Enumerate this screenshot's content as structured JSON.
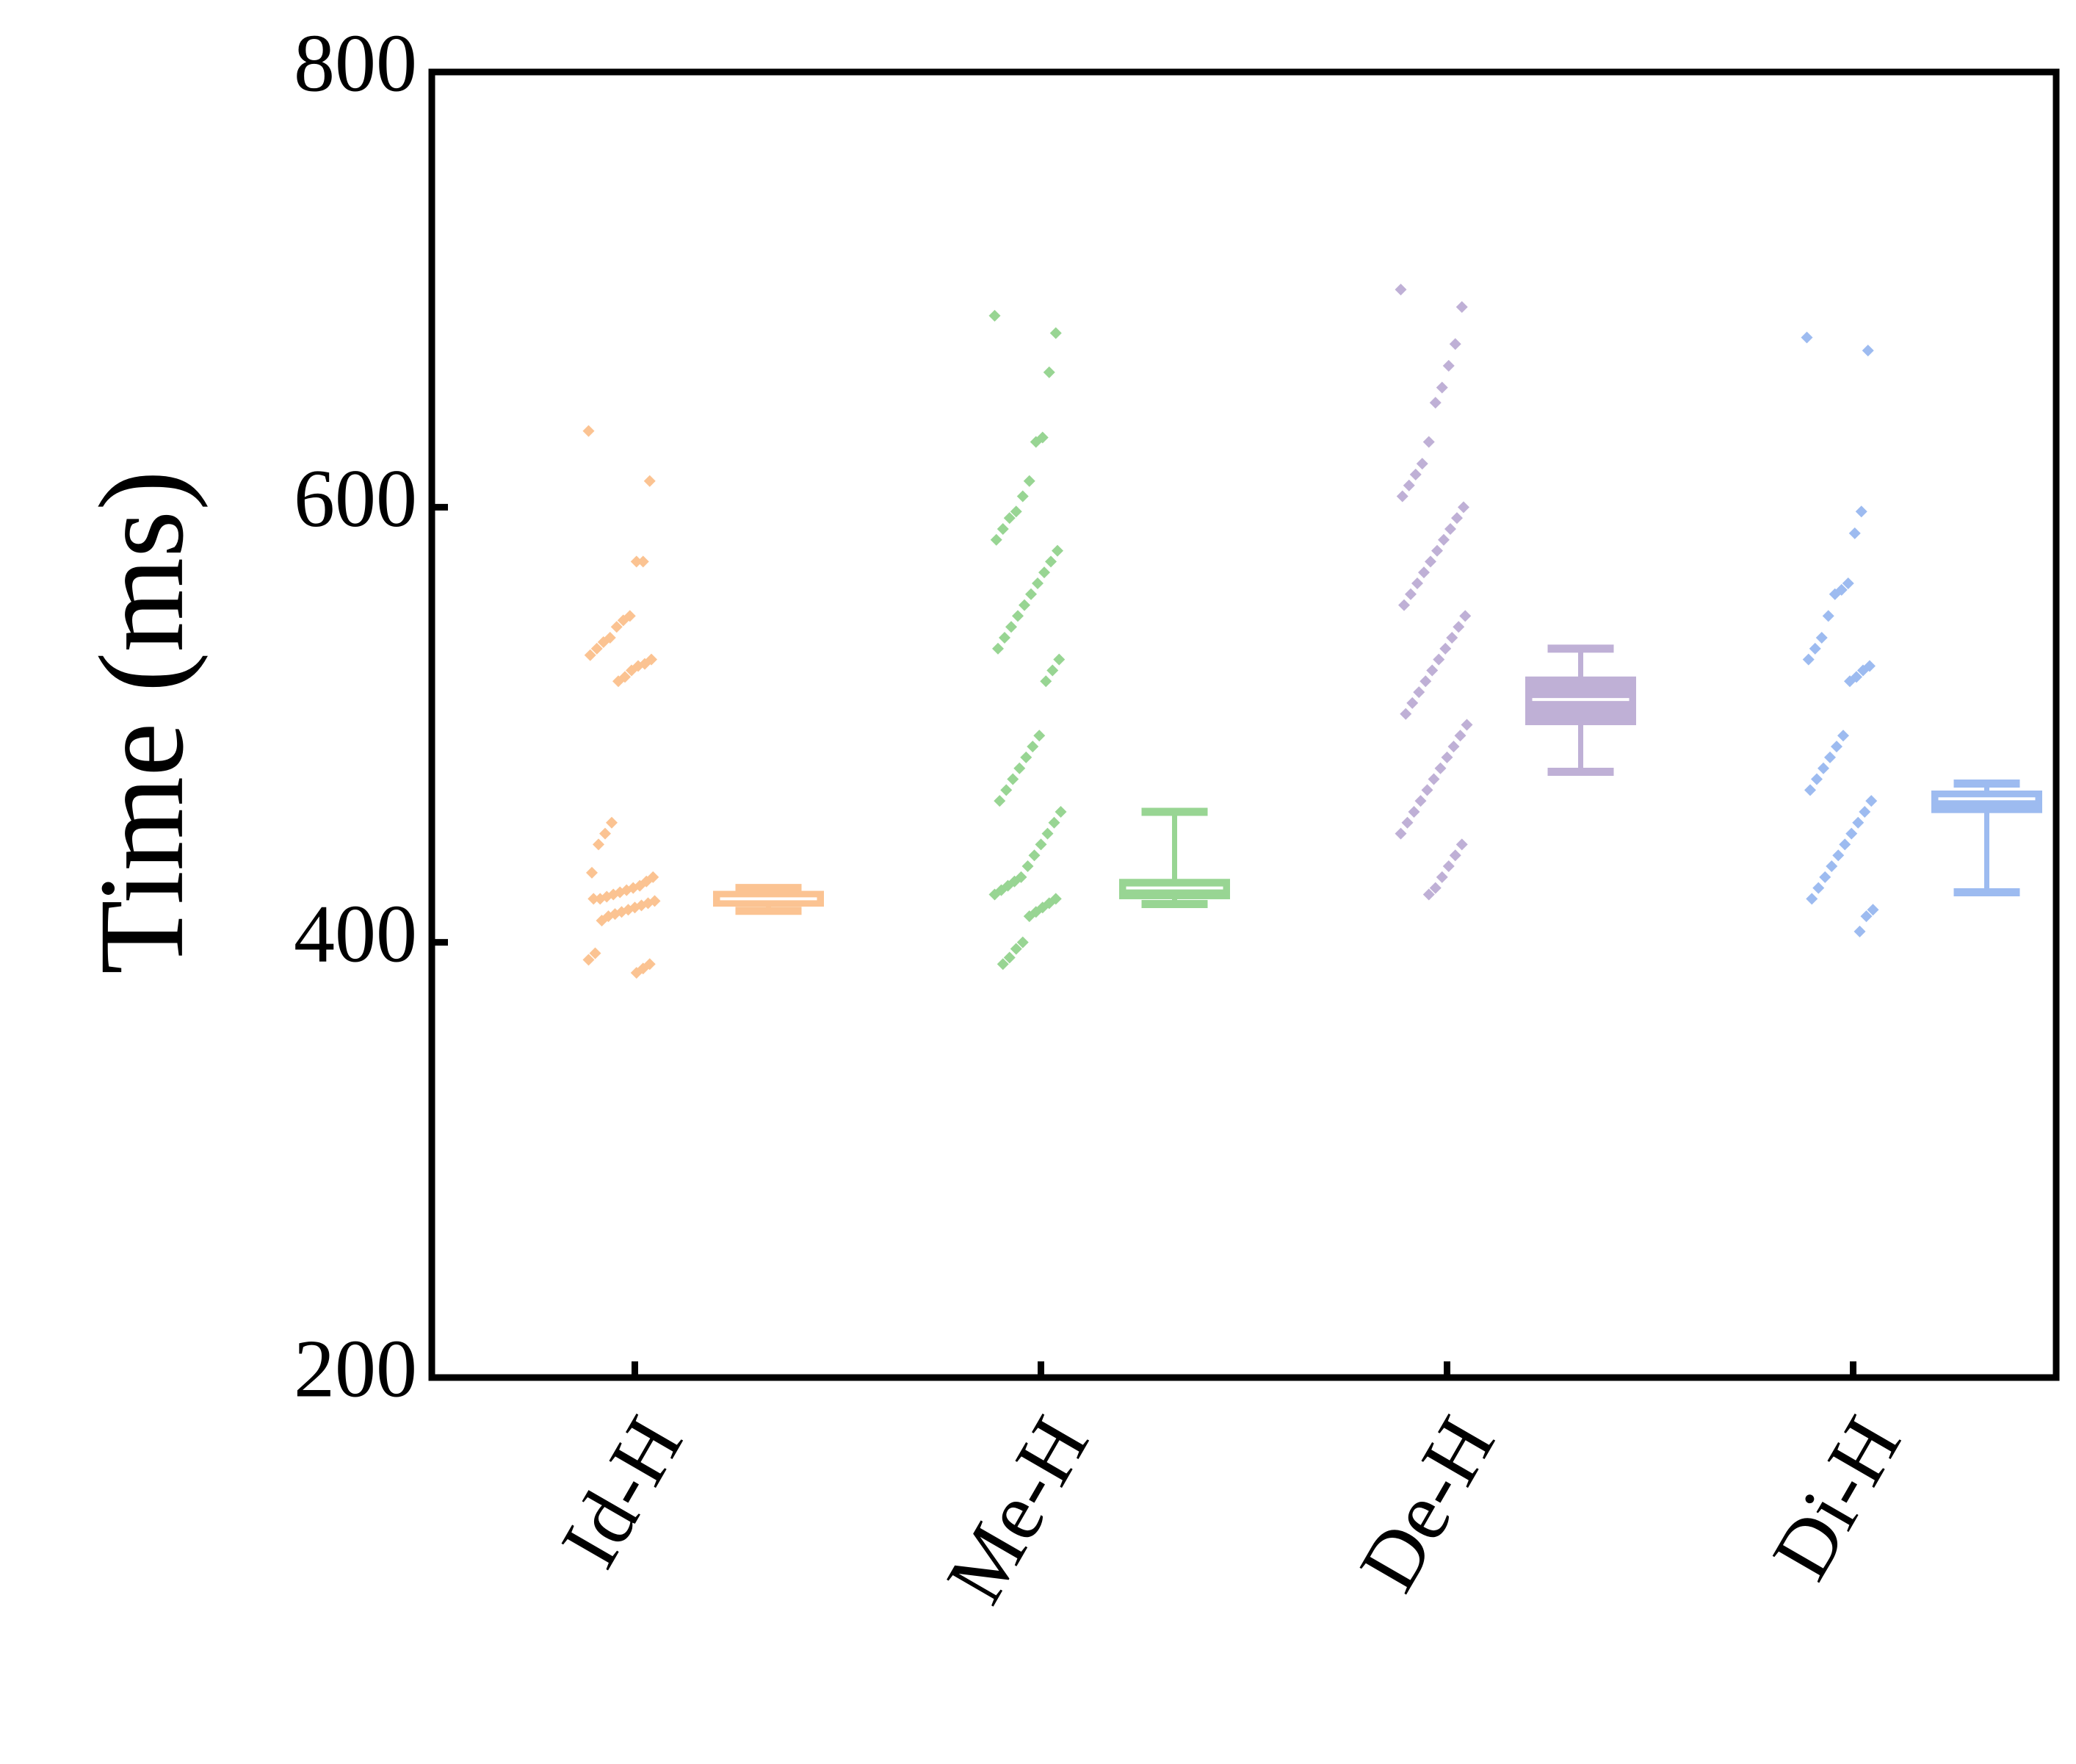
{
  "chart_data": {
    "type": "box",
    "y_label": "Time (ms)",
    "categories": [
      "Id-H",
      "Me-H",
      "De-H",
      "Di-H"
    ],
    "colors": [
      "#fbc392",
      "#98d593",
      "#bfb0d6",
      "#9dbbf0"
    ],
    "ylim": [
      200,
      800
    ],
    "yticks": [
      200,
      400,
      600,
      800
    ],
    "boxes": [
      {
        "whislo": 414.5,
        "q1": 417.6,
        "med": 420,
        "q3": 422.5,
        "whishi": 425
      },
      {
        "whislo": 417.6,
        "q1": 421,
        "med": 425,
        "q3": 428,
        "whishi": 460
      },
      {
        "whislo": 478.4,
        "q1": 501,
        "med": 511.6,
        "q3": 521,
        "whishi": 535
      },
      {
        "whislo": 423,
        "q1": 460.6,
        "med": 466,
        "q3": 468.6,
        "whishi": 473
      }
    ],
    "points": [
      [
        635,
        612,
        575,
        575,
        550,
        548,
        545,
        540,
        538,
        535,
        532,
        530,
        528,
        527,
        525,
        522,
        520,
        455,
        450,
        445,
        432,
        430,
        428,
        426,
        425,
        424,
        423,
        422,
        421,
        420,
        420,
        419,
        418,
        417,
        416,
        415,
        414,
        413,
        412,
        410,
        395,
        392,
        390,
        388,
        386
      ],
      [
        688,
        680,
        662,
        632,
        630,
        612,
        605,
        598,
        595,
        590,
        585,
        580,
        575,
        570,
        565,
        560,
        555,
        550,
        545,
        540,
        535,
        530,
        525,
        520,
        495,
        490,
        485,
        480,
        475,
        470,
        465,
        460,
        455,
        450,
        445,
        440,
        435,
        430,
        428,
        426,
        424,
        422,
        420,
        418,
        416,
        414,
        412,
        400,
        397,
        393,
        390
      ],
      [
        700,
        692,
        675,
        665,
        655,
        648,
        630,
        620,
        615,
        610,
        605,
        600,
        595,
        590,
        585,
        580,
        575,
        570,
        565,
        560,
        555,
        550,
        545,
        540,
        535,
        530,
        525,
        520,
        515,
        510,
        505,
        500,
        495,
        490,
        485,
        480,
        475,
        470,
        465,
        460,
        455,
        450,
        445,
        440,
        435,
        430,
        425,
        422
      ],
      [
        678,
        672,
        598,
        588,
        565,
        562,
        560,
        550,
        540,
        535,
        530,
        527,
        525,
        522,
        520,
        495,
        490,
        485,
        480,
        475,
        470,
        465,
        460,
        455,
        450,
        445,
        440,
        435,
        430,
        425,
        420,
        415,
        412,
        405
      ]
    ]
  }
}
